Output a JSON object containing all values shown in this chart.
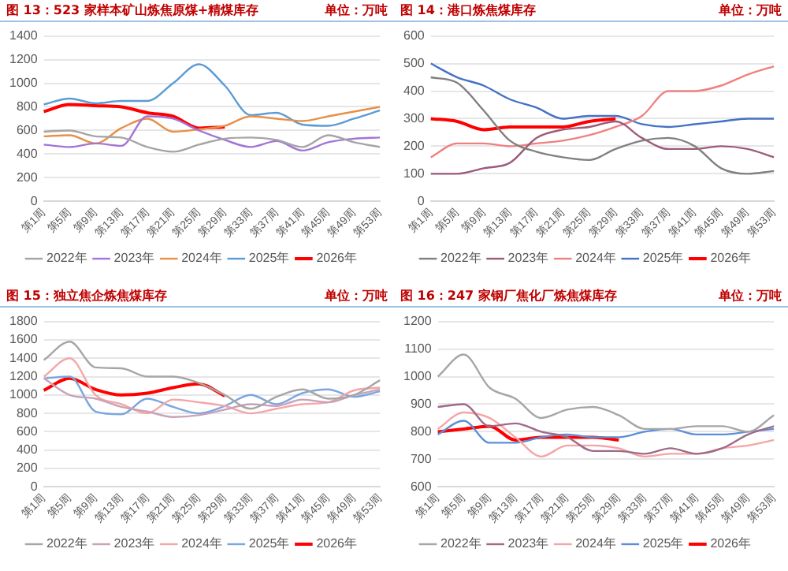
{
  "chart_data": [
    {
      "type": "line",
      "title": "图 13：523 家样本矿山炼焦原煤+精煤库存",
      "annotations": [
        "单位：万吨"
      ],
      "categories": [
        "第1周",
        "第5周",
        "第9周",
        "第13周",
        "第17周",
        "第21周",
        "第25周",
        "第29周",
        "第33周",
        "第37周",
        "第41周",
        "第45周",
        "第49周",
        "第53周"
      ],
      "ylim": [
        0,
        1400
      ],
      "yticks": [
        0,
        200,
        400,
        600,
        800,
        1000,
        1200,
        1400
      ],
      "grid": "y",
      "legend": "bottom",
      "marker": "none",
      "series": [
        {
          "name": "2022年",
          "color": "#a5a5a5",
          "values": [
            590,
            600,
            550,
            540,
            460,
            420,
            480,
            530,
            540,
            520,
            460,
            560,
            500,
            460
          ]
        },
        {
          "name": "2023年",
          "color": "#a374d6",
          "values": [
            480,
            460,
            490,
            470,
            720,
            700,
            600,
            520,
            460,
            510,
            430,
            500,
            530,
            540
          ]
        },
        {
          "name": "2024年",
          "color": "#e8904a",
          "values": [
            550,
            560,
            490,
            620,
            700,
            590,
            610,
            640,
            720,
            700,
            680,
            720,
            760,
            800
          ]
        },
        {
          "name": "2025年",
          "color": "#5b9bd5",
          "values": [
            820,
            870,
            830,
            850,
            850,
            1000,
            1160,
            980,
            730,
            750,
            650,
            640,
            700,
            770
          ]
        },
        {
          "name": "2026年",
          "color": "#ff0000",
          "values": [
            760,
            820,
            810,
            800,
            750,
            720,
            620,
            630,
            null,
            null,
            null,
            null,
            null,
            null
          ]
        }
      ]
    },
    {
      "type": "line",
      "title": "图 14：港口炼焦煤库存",
      "annotations": [
        "单位：万吨"
      ],
      "categories": [
        "第1周",
        "第5周",
        "第9周",
        "第13周",
        "第17周",
        "第21周",
        "第25周",
        "第29周",
        "第33周",
        "第37周",
        "第41周",
        "第45周",
        "第49周",
        "第53周"
      ],
      "ylim": [
        0,
        600
      ],
      "yticks": [
        0,
        100,
        200,
        300,
        400,
        500,
        600
      ],
      "grid": "y",
      "legend": "bottom",
      "marker": "none",
      "series": [
        {
          "name": "2022年",
          "color": "#808080",
          "values": [
            450,
            430,
            330,
            220,
            180,
            160,
            150,
            190,
            220,
            230,
            200,
            120,
            100,
            110
          ]
        },
        {
          "name": "2023年",
          "color": "#9e5a7a",
          "values": [
            100,
            100,
            120,
            140,
            230,
            260,
            270,
            290,
            230,
            190,
            190,
            200,
            190,
            160
          ]
        },
        {
          "name": "2024年",
          "color": "#f08080",
          "values": [
            160,
            210,
            210,
            200,
            210,
            220,
            240,
            270,
            310,
            400,
            400,
            420,
            460,
            490
          ]
        },
        {
          "name": "2025年",
          "color": "#4472c4",
          "values": [
            500,
            450,
            420,
            370,
            340,
            300,
            310,
            310,
            280,
            270,
            280,
            290,
            300,
            300
          ]
        },
        {
          "name": "2026年",
          "color": "#ff0000",
          "values": [
            300,
            290,
            260,
            270,
            270,
            270,
            290,
            300,
            null,
            null,
            null,
            null,
            null,
            null
          ]
        }
      ]
    },
    {
      "type": "line",
      "title": "图 15：独立焦企炼焦煤库存",
      "annotations": [
        "单位：万吨"
      ],
      "categories": [
        "第1周",
        "第5周",
        "第9周",
        "第13周",
        "第17周",
        "第21周",
        "第25周",
        "第29周",
        "第33周",
        "第37周",
        "第41周",
        "第45周",
        "第49周",
        "第53周"
      ],
      "ylim": [
        0,
        1800
      ],
      "yticks": [
        0,
        200,
        400,
        600,
        800,
        1000,
        1200,
        1400,
        1600,
        1800
      ],
      "grid": "y",
      "legend": "bottom",
      "marker": "none",
      "series": [
        {
          "name": "2022年",
          "color": "#a6a6a6",
          "values": [
            1380,
            1580,
            1300,
            1290,
            1200,
            1200,
            1130,
            1000,
            850,
            980,
            1060,
            960,
            1000,
            1160
          ]
        },
        {
          "name": "2023年",
          "color": "#c8a2b8",
          "values": [
            1180,
            1000,
            960,
            870,
            820,
            760,
            780,
            840,
            900,
            880,
            950,
            920,
            1000,
            1060
          ]
        },
        {
          "name": "2024年",
          "color": "#f4a6a6",
          "values": [
            1200,
            1400,
            1000,
            900,
            800,
            950,
            920,
            880,
            800,
            850,
            900,
            920,
            1050,
            1080
          ]
        },
        {
          "name": "2025年",
          "color": "#7aa6e0",
          "values": [
            1180,
            1200,
            820,
            790,
            960,
            870,
            800,
            880,
            1000,
            900,
            1020,
            1060,
            980,
            1040
          ]
        },
        {
          "name": "2026年",
          "color": "#ff0000",
          "values": [
            1050,
            1180,
            1060,
            1000,
            1020,
            1080,
            1120,
            990,
            null,
            null,
            null,
            null,
            null,
            null
          ]
        }
      ]
    },
    {
      "type": "line",
      "title": "图 16：247 家钢厂焦化厂炼焦煤库存",
      "annotations": [
        "单位：万吨"
      ],
      "categories": [
        "第1周",
        "第5周",
        "第9周",
        "第13周",
        "第17周",
        "第21周",
        "第25周",
        "第29周",
        "第33周",
        "第37周",
        "第41周",
        "第45周",
        "第49周",
        "第53周"
      ],
      "ylim": [
        600,
        1200
      ],
      "yticks": [
        600,
        700,
        800,
        900,
        1000,
        1100,
        1200
      ],
      "grid": "y",
      "legend": "bottom",
      "marker": "none",
      "series": [
        {
          "name": "2022年",
          "color": "#a6a6a6",
          "values": [
            1000,
            1080,
            960,
            920,
            850,
            880,
            890,
            860,
            810,
            810,
            820,
            820,
            800,
            860
          ]
        },
        {
          "name": "2023年",
          "color": "#9e6a8a",
          "values": [
            890,
            900,
            820,
            830,
            800,
            780,
            730,
            730,
            720,
            740,
            720,
            740,
            790,
            820
          ]
        },
        {
          "name": "2024年",
          "color": "#f4a6a6",
          "values": [
            810,
            870,
            850,
            780,
            710,
            750,
            750,
            740,
            710,
            720,
            720,
            740,
            750,
            770
          ]
        },
        {
          "name": "2025年",
          "color": "#5b8fd8",
          "values": [
            790,
            840,
            760,
            760,
            780,
            790,
            780,
            780,
            800,
            810,
            790,
            790,
            800,
            810
          ]
        },
        {
          "name": "2026年",
          "color": "#ff0000",
          "values": [
            800,
            810,
            820,
            770,
            780,
            780,
            780,
            770,
            null,
            null,
            null,
            null,
            null,
            null
          ]
        }
      ]
    }
  ]
}
